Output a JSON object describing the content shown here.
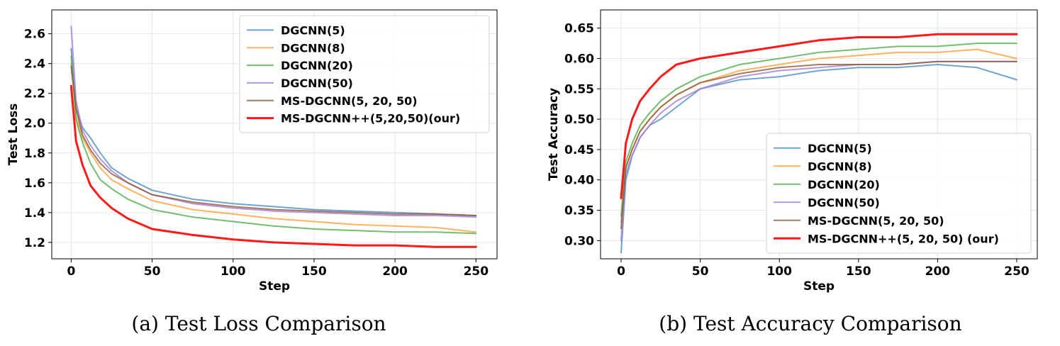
{
  "colors": {
    "dgcnn5": "#4a8fc4",
    "dgcnn8": "#ff9f3a",
    "dgcnn20": "#4cae4c",
    "dgcnn50": "#a57bd2",
    "ms": "#8c5a3c",
    "msplus": "#ff0000"
  },
  "chart_data": [
    {
      "type": "line",
      "caption": "(a) Test Loss Comparison",
      "xlabel": "Step",
      "ylabel": "Test Loss",
      "xlim": [
        -12,
        263
      ],
      "ylim": [
        1.09,
        2.76
      ],
      "xticks": [
        0,
        50,
        100,
        150,
        200,
        250
      ],
      "yticks": [
        1.2,
        1.4,
        1.6,
        1.8,
        2.0,
        2.2,
        2.4,
        2.6
      ],
      "ytick_labels": [
        "1.2",
        "1.4",
        "1.6",
        "1.8",
        "2.0",
        "2.2",
        "2.4",
        "2.6"
      ],
      "grid": true,
      "legend_position": "top-right",
      "series": [
        {
          "key": "dgcnn5",
          "name": "DGCNN(5)",
          "x": [
            0,
            3,
            7,
            12,
            18,
            25,
            35,
            50,
            75,
            100,
            125,
            150,
            175,
            200,
            225,
            250
          ],
          "y": [
            2.5,
            2.1,
            1.97,
            1.9,
            1.8,
            1.7,
            1.63,
            1.55,
            1.49,
            1.46,
            1.44,
            1.42,
            1.41,
            1.4,
            1.39,
            1.38
          ]
        },
        {
          "key": "dgcnn8",
          "name": "DGCNN(8)",
          "x": [
            0,
            3,
            7,
            12,
            18,
            25,
            35,
            50,
            75,
            100,
            125,
            150,
            175,
            200,
            225,
            250
          ],
          "y": [
            2.4,
            2.05,
            1.9,
            1.8,
            1.7,
            1.62,
            1.56,
            1.48,
            1.42,
            1.39,
            1.36,
            1.34,
            1.32,
            1.31,
            1.3,
            1.27
          ]
        },
        {
          "key": "dgcnn20",
          "name": "DGCNN(20)",
          "x": [
            0,
            3,
            7,
            12,
            18,
            25,
            35,
            50,
            75,
            100,
            125,
            150,
            175,
            200,
            225,
            250
          ],
          "y": [
            2.45,
            2.02,
            1.87,
            1.73,
            1.62,
            1.56,
            1.49,
            1.42,
            1.37,
            1.34,
            1.31,
            1.29,
            1.28,
            1.27,
            1.27,
            1.26
          ]
        },
        {
          "key": "dgcnn50",
          "name": "DGCNN(50)",
          "x": [
            0,
            3,
            7,
            12,
            18,
            25,
            35,
            50,
            75,
            100,
            125,
            150,
            175,
            200,
            225,
            250
          ],
          "y": [
            2.65,
            2.15,
            1.95,
            1.85,
            1.76,
            1.68,
            1.6,
            1.52,
            1.46,
            1.43,
            1.41,
            1.4,
            1.39,
            1.38,
            1.38,
            1.37
          ]
        },
        {
          "key": "ms",
          "name": "MS-DGCNN(5, 20, 50)",
          "x": [
            0,
            3,
            7,
            12,
            18,
            25,
            35,
            50,
            75,
            100,
            125,
            150,
            175,
            200,
            225,
            250
          ],
          "y": [
            2.38,
            2.1,
            1.92,
            1.82,
            1.73,
            1.66,
            1.6,
            1.52,
            1.47,
            1.44,
            1.42,
            1.41,
            1.4,
            1.39,
            1.39,
            1.38
          ]
        },
        {
          "key": "msplus",
          "name": "MS-DGCNN++(5,20,50)(our)",
          "x": [
            0,
            3,
            7,
            12,
            18,
            25,
            35,
            50,
            75,
            100,
            125,
            150,
            175,
            200,
            225,
            250
          ],
          "y": [
            2.25,
            1.88,
            1.72,
            1.58,
            1.5,
            1.43,
            1.36,
            1.29,
            1.25,
            1.22,
            1.2,
            1.19,
            1.18,
            1.18,
            1.17,
            1.17
          ]
        }
      ]
    },
    {
      "type": "line",
      "caption": "(b) Test Accuracy Comparison",
      "xlabel": "Step",
      "ylabel": "Test Accuracy",
      "xlim": [
        -13,
        263
      ],
      "ylim": [
        0.27,
        0.68
      ],
      "xticks": [
        0,
        50,
        100,
        150,
        200,
        250
      ],
      "yticks": [
        0.3,
        0.35,
        0.4,
        0.45,
        0.5,
        0.55,
        0.6,
        0.65
      ],
      "ytick_labels": [
        "0.30",
        "0.35",
        "0.40",
        "0.45",
        "0.50",
        "0.55",
        "0.60",
        "0.65"
      ],
      "grid": true,
      "legend_position": "bottom-right",
      "series": [
        {
          "key": "dgcnn5",
          "name": "DGCNN(5)",
          "x": [
            0,
            3,
            7,
            12,
            18,
            25,
            35,
            50,
            75,
            100,
            125,
            150,
            175,
            200,
            225,
            250
          ],
          "y": [
            0.28,
            0.4,
            0.44,
            0.47,
            0.49,
            0.5,
            0.52,
            0.55,
            0.565,
            0.57,
            0.58,
            0.585,
            0.585,
            0.59,
            0.585,
            0.565
          ]
        },
        {
          "key": "dgcnn8",
          "name": "DGCNN(8)",
          "x": [
            0,
            3,
            7,
            12,
            18,
            25,
            35,
            50,
            75,
            100,
            125,
            150,
            175,
            200,
            225,
            250
          ],
          "y": [
            0.33,
            0.42,
            0.45,
            0.48,
            0.5,
            0.52,
            0.54,
            0.56,
            0.58,
            0.59,
            0.6,
            0.605,
            0.61,
            0.61,
            0.615,
            0.6
          ]
        },
        {
          "key": "dgcnn20",
          "name": "DGCNN(20)",
          "x": [
            0,
            3,
            7,
            12,
            18,
            25,
            35,
            50,
            75,
            100,
            125,
            150,
            175,
            200,
            225,
            250
          ],
          "y": [
            0.34,
            0.43,
            0.46,
            0.49,
            0.51,
            0.53,
            0.55,
            0.57,
            0.59,
            0.6,
            0.61,
            0.615,
            0.62,
            0.62,
            0.625,
            0.625
          ]
        },
        {
          "key": "dgcnn50",
          "name": "DGCNN(50)",
          "x": [
            0,
            3,
            7,
            12,
            18,
            25,
            35,
            50,
            75,
            100,
            125,
            150,
            175,
            200,
            225,
            250
          ],
          "y": [
            0.3,
            0.41,
            0.44,
            0.47,
            0.49,
            0.51,
            0.53,
            0.55,
            0.57,
            0.58,
            0.585,
            0.59,
            0.59,
            0.595,
            0.595,
            0.595
          ]
        },
        {
          "key": "ms",
          "name": "MS-DGCNN(5, 20, 50)",
          "x": [
            0,
            3,
            7,
            12,
            18,
            25,
            35,
            50,
            75,
            100,
            125,
            150,
            175,
            200,
            225,
            250
          ],
          "y": [
            0.32,
            0.42,
            0.45,
            0.48,
            0.5,
            0.52,
            0.54,
            0.56,
            0.575,
            0.585,
            0.59,
            0.59,
            0.59,
            0.595,
            0.595,
            0.595
          ]
        },
        {
          "key": "msplus",
          "name": "MS-DGCNN++(5, 20, 50) (our)",
          "x": [
            0,
            3,
            7,
            12,
            18,
            25,
            35,
            50,
            75,
            100,
            125,
            150,
            175,
            200,
            225,
            250
          ],
          "y": [
            0.37,
            0.46,
            0.5,
            0.53,
            0.55,
            0.57,
            0.59,
            0.6,
            0.61,
            0.62,
            0.63,
            0.635,
            0.635,
            0.64,
            0.64,
            0.64
          ]
        }
      ]
    }
  ]
}
